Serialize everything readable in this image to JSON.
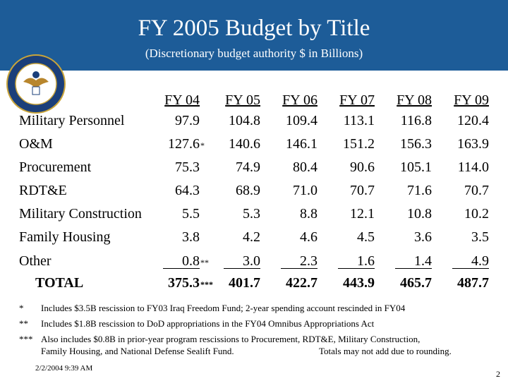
{
  "header": {
    "title": "FY 2005 Budget by Title",
    "subtitle": "(Discretionary budget authority $ in Billions)"
  },
  "table": {
    "columns": [
      "FY 04",
      "FY 05",
      "FY 06",
      "FY 07",
      "FY 08",
      "FY 09"
    ],
    "rows": [
      {
        "label": "Military Personnel",
        "values": [
          "97.9",
          "104.8",
          "109.4",
          "113.1",
          "116.8",
          "120.4"
        ]
      },
      {
        "label": "O&M",
        "values": [
          "127.6",
          "140.6",
          "146.1",
          "151.2",
          "156.3",
          "163.9"
        ],
        "note_marks": {
          "0": "*"
        }
      },
      {
        "label": "Procurement",
        "values": [
          "75.3",
          "74.9",
          "80.4",
          "90.6",
          "105.1",
          "114.0"
        ]
      },
      {
        "label": "RDT&E",
        "values": [
          "64.3",
          "68.9",
          "71.0",
          "70.7",
          "71.6",
          "70.7"
        ]
      },
      {
        "label": "Military Construction",
        "values": [
          "5.5",
          "5.3",
          "8.8",
          "12.1",
          "10.8",
          "10.2"
        ]
      },
      {
        "label": "Family Housing",
        "values": [
          "3.8",
          "4.2",
          "4.6",
          "4.5",
          "3.6",
          "3.5"
        ]
      },
      {
        "label": "Other",
        "values": [
          "0.8",
          "3.0",
          "2.3",
          "1.6",
          "1.4",
          "4.9"
        ],
        "note_marks": {
          "0": "**"
        },
        "underlined": true
      },
      {
        "label": "TOTAL",
        "values": [
          "375.3",
          "401.7",
          "422.7",
          "443.9",
          "465.7",
          "487.7"
        ],
        "note_marks": {
          "0": "***"
        },
        "bold": true
      }
    ]
  },
  "footnotes": [
    {
      "marker": "*",
      "text": "Includes $3.5B rescission to FY03 Iraq Freedom Fund; 2-year spending account rescinded in FY04"
    },
    {
      "marker": "**",
      "text": "Includes $1.8B rescission to DoD appropriations in the FY04 Omnibus Appropriations Act"
    },
    {
      "marker": "***",
      "lines": [
        "Also includes $0.8B in prior-year program rescissions to Procurement, RDT&E, Military Construction,",
        "Family Housing, and National Defense Sealift Fund."
      ]
    }
  ],
  "rounding_note": "Totals may not add due to rounding.",
  "footer": {
    "date": "2/2/2004 9:39 AM",
    "page": "2"
  }
}
